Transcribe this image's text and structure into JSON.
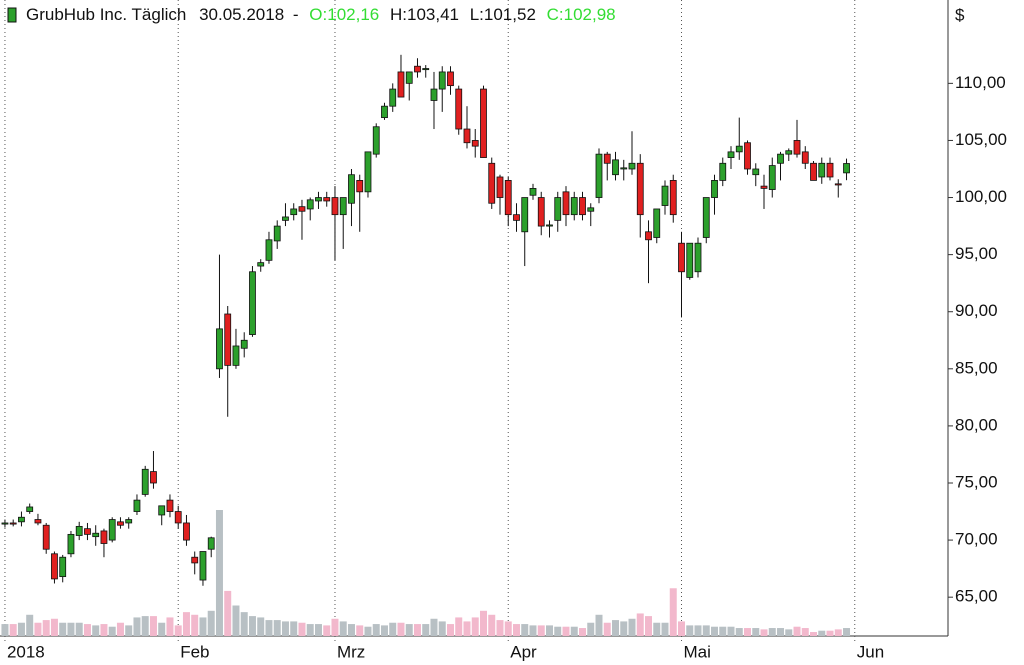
{
  "chart_data": {
    "type": "candlestick",
    "title": "GrubHub Inc. Täglich",
    "date": "30.05.2018",
    "separator": "-",
    "open_label": "O:102,16",
    "high_label": "H:103,41",
    "low_label": "L:101,52",
    "close_label": "C:102,98",
    "unit": "$",
    "up_color": "#2ca02c",
    "down_color": "#e02020",
    "volume_up_color": "#b8c0c4",
    "volume_down_color": "#f2b8cc",
    "ylim": [
      61.6,
      117.3
    ],
    "yticks": [
      {
        "value": 65,
        "label": "65,00"
      },
      {
        "value": 70,
        "label": "70,00"
      },
      {
        "value": 75,
        "label": "75,00"
      },
      {
        "value": 80,
        "label": "80,00"
      },
      {
        "value": 85,
        "label": "85,00"
      },
      {
        "value": 90,
        "label": "90,00"
      },
      {
        "value": 95,
        "label": "95,00"
      },
      {
        "value": 100,
        "label": "100,00"
      },
      {
        "value": 105,
        "label": "105,00"
      },
      {
        "value": 110,
        "label": "110,00"
      }
    ],
    "xlim": [
      -0.6,
      114.3
    ],
    "xticks": [
      {
        "value": 0,
        "label": "2018"
      },
      {
        "value": 21,
        "label": "Feb"
      },
      {
        "value": 40,
        "label": "Mrz"
      },
      {
        "value": 61,
        "label": "Apr"
      },
      {
        "value": 82,
        "label": "Mai"
      },
      {
        "value": 103,
        "label": "Jun"
      }
    ],
    "open": [
      71.4,
      71.5,
      71.6,
      72.5,
      71.8,
      71.3,
      68.8,
      66.8,
      68.8,
      70.4,
      71.0,
      70.3,
      70.8,
      70.0,
      71.6,
      71.5,
      72.5,
      74.0,
      76.0,
      72.2,
      73.5,
      72.5,
      71.5,
      68.5,
      66.5,
      69.2,
      85.0,
      89.8,
      85.3,
      86.8,
      88.0,
      94.0,
      94.5,
      96.2,
      98.0,
      98.5,
      99.2,
      99.0,
      99.7,
      100.0,
      100.0,
      98.5,
      99.5,
      101.5,
      100.5,
      103.8,
      107.0,
      108.0,
      111.0,
      110.0,
      111.5,
      111.2,
      108.5,
      109.5,
      111.0,
      109.5,
      106.0,
      105.0,
      109.5,
      103.0,
      101.8,
      101.5,
      98.5,
      97.0,
      100.2,
      100.0,
      97.5,
      98.0,
      100.5,
      98.5,
      100.0,
      98.8,
      100.0,
      103.8,
      102.0,
      102.5,
      102.5,
      103.0,
      97.0,
      96.5,
      99.3,
      101.5,
      96.0,
      93.0,
      93.5,
      96.5,
      100.0,
      101.5,
      103.5,
      104.0,
      104.8,
      102.0,
      101.0,
      100.7,
      103.0,
      103.8,
      105.0,
      104.0,
      103.0,
      101.8,
      103.0,
      101.2,
      102.16
    ],
    "high": [
      71.8,
      71.8,
      72.5,
      73.2,
      72.3,
      71.5,
      69.0,
      68.7,
      70.8,
      71.6,
      71.5,
      71.3,
      71.0,
      72.0,
      72.0,
      72.0,
      74.0,
      76.5,
      77.8,
      73.0,
      74.0,
      73.0,
      72.2,
      69.0,
      69.0,
      70.3,
      95.0,
      90.5,
      88.5,
      88.2,
      94.0,
      94.6,
      97.0,
      98.0,
      99.5,
      99.5,
      99.8,
      100.0,
      100.5,
      100.5,
      101.0,
      100.0,
      102.5,
      102.0,
      104.0,
      106.5,
      108.3,
      110.0,
      112.5,
      111.0,
      112.2,
      111.6,
      111.0,
      111.5,
      111.5,
      109.8,
      108.0,
      106.0,
      109.8,
      103.5,
      102.0,
      101.8,
      99.5,
      100.0,
      101.2,
      100.5,
      98.0,
      100.5,
      101.0,
      100.5,
      100.5,
      99.5,
      104.3,
      104.0,
      104.0,
      103.3,
      105.8,
      103.8,
      98.0,
      99.0,
      101.5,
      102.0,
      97.0,
      96.0,
      96.5,
      100.0,
      102.0,
      103.5,
      104.5,
      107.0,
      105.0,
      103.0,
      102.0,
      103.5,
      104.0,
      104.3,
      106.8,
      104.5,
      103.2,
      103.5,
      103.5,
      101.6,
      103.41
    ],
    "low": [
      71.1,
      71.2,
      71.2,
      72.3,
      71.3,
      68.8,
      66.2,
      66.3,
      68.5,
      70.0,
      70.0,
      69.5,
      68.5,
      69.8,
      71.0,
      71.0,
      72.2,
      73.8,
      74.5,
      71.3,
      72.0,
      71.0,
      69.5,
      67.0,
      66.0,
      68.5,
      84.2,
      80.8,
      85.0,
      86.0,
      87.8,
      93.5,
      94.2,
      95.5,
      97.5,
      98.0,
      96.3,
      98.0,
      99.0,
      99.2,
      94.5,
      95.5,
      97.5,
      97.0,
      100.0,
      103.5,
      106.8,
      107.5,
      108.8,
      108.5,
      110.5,
      110.5,
      106.0,
      107.5,
      109.0,
      105.5,
      104.3,
      103.5,
      103.5,
      99.0,
      98.5,
      97.5,
      97.0,
      94.0,
      99.8,
      96.7,
      96.5,
      97.0,
      97.5,
      98.0,
      98.0,
      97.5,
      99.5,
      101.5,
      101.5,
      101.5,
      102.0,
      96.5,
      92.5,
      96.0,
      98.5,
      97.8,
      89.5,
      92.8,
      93.0,
      96.0,
      98.5,
      101.0,
      102.5,
      103.3,
      102.0,
      101.0,
      99.0,
      100.0,
      101.5,
      103.2,
      103.5,
      102.5,
      101.5,
      101.2,
      101.5,
      100.0,
      101.52
    ],
    "close": [
      71.5,
      71.4,
      72.0,
      72.9,
      71.5,
      69.2,
      66.6,
      68.5,
      70.5,
      71.2,
      70.5,
      70.6,
      69.7,
      71.8,
      71.3,
      71.8,
      73.5,
      76.2,
      75.0,
      73.0,
      72.5,
      71.5,
      70.0,
      68.0,
      69.0,
      70.2,
      88.5,
      85.3,
      87.0,
      87.5,
      93.5,
      94.3,
      96.3,
      97.5,
      98.3,
      99.0,
      98.8,
      99.8,
      100.0,
      99.7,
      98.5,
      100.0,
      102.0,
      100.5,
      104.0,
      106.2,
      108.0,
      109.5,
      108.8,
      111.0,
      111.0,
      111.3,
      109.5,
      111.0,
      109.8,
      106.0,
      104.8,
      104.5,
      103.5,
      99.5,
      100.0,
      98.5,
      98.0,
      100.0,
      100.8,
      97.5,
      97.6,
      100.0,
      98.5,
      100.0,
      98.5,
      99.1,
      103.8,
      103.0,
      103.3,
      102.6,
      103.0,
      98.5,
      96.3,
      99.0,
      101.0,
      98.5,
      93.5,
      96.0,
      96.0,
      100.0,
      101.5,
      103.0,
      104.0,
      104.5,
      102.5,
      102.5,
      100.8,
      102.8,
      103.8,
      104.1,
      103.8,
      103.0,
      101.5,
      103.0,
      101.8,
      101.1,
      102.98
    ],
    "volume": [
      0.9,
      0.9,
      1.0,
      1.6,
      1.0,
      1.2,
      1.3,
      1.0,
      1.0,
      1.0,
      0.9,
      0.8,
      0.9,
      0.7,
      1.0,
      0.8,
      1.4,
      1.5,
      1.5,
      1.0,
      1.4,
      0.8,
      1.8,
      1.6,
      1.4,
      1.9,
      9.5,
      3.4,
      2.3,
      1.8,
      1.5,
      1.4,
      1.2,
      1.2,
      1.1,
      1.1,
      1.0,
      0.9,
      0.9,
      0.8,
      1.3,
      1.1,
      0.9,
      0.8,
      0.7,
      0.9,
      0.8,
      1.0,
      1.0,
      0.9,
      0.9,
      0.9,
      1.3,
      1.1,
      0.9,
      1.4,
      1.1,
      1.4,
      1.9,
      1.6,
      1.2,
      1.1,
      0.9,
      0.9,
      0.8,
      0.8,
      0.8,
      0.7,
      0.7,
      0.7,
      0.6,
      1.0,
      1.6,
      1.0,
      1.2,
      1.1,
      1.3,
      1.7,
      1.5,
      1.0,
      1.0,
      3.6,
      1.1,
      0.8,
      0.8,
      0.8,
      0.7,
      0.7,
      0.7,
      0.6,
      0.6,
      0.6,
      0.5,
      0.6,
      0.6,
      0.5,
      0.7,
      0.6,
      0.3,
      0.4,
      0.4,
      0.5,
      0.6
    ]
  }
}
